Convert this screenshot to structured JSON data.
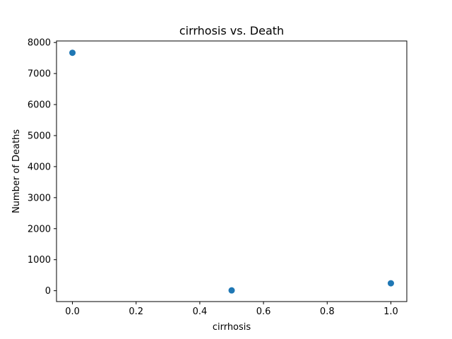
{
  "chart_data": {
    "type": "scatter",
    "title": "cirrhosis vs. Death",
    "xlabel": "cirrhosis",
    "ylabel": "Number of Deaths",
    "xlim": [
      -0.05,
      1.05
    ],
    "ylim": [
      -350,
      8050
    ],
    "xticks": [
      0.0,
      0.2,
      0.4,
      0.6,
      0.8,
      1.0
    ],
    "xtick_labels": [
      "0.0",
      "0.2",
      "0.4",
      "0.6",
      "0.8",
      "1.0"
    ],
    "yticks": [
      0,
      1000,
      2000,
      3000,
      4000,
      5000,
      6000,
      7000,
      8000
    ],
    "ytick_labels": [
      "0",
      "1000",
      "2000",
      "3000",
      "4000",
      "5000",
      "6000",
      "7000",
      "8000"
    ],
    "grid": false,
    "color": "#1f77b4",
    "points": [
      {
        "x": 0.0,
        "y": 7670
      },
      {
        "x": 0.5,
        "y": 10
      },
      {
        "x": 1.0,
        "y": 240
      }
    ]
  }
}
